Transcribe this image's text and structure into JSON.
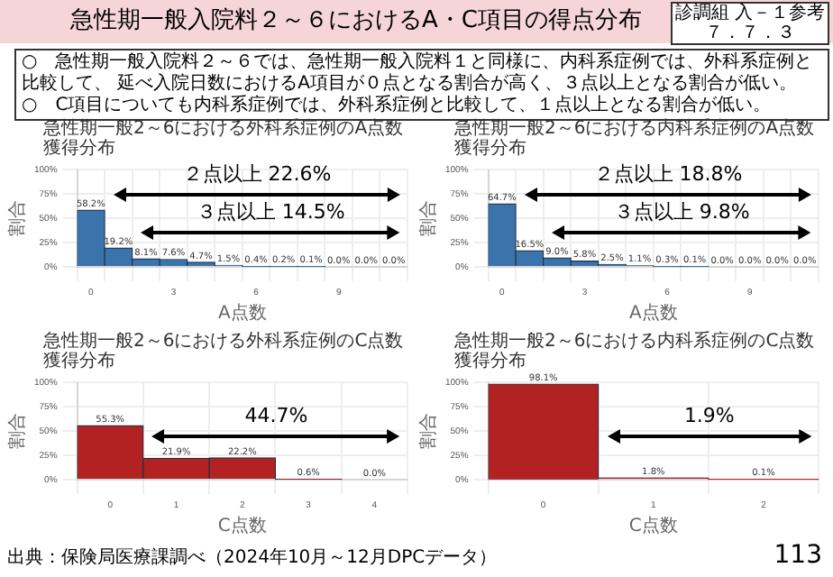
{
  "chart_data": [
    {
      "type": "other",
      "title": "急性期一般入院料２～６におけるA・C項目の得点分布",
      "annotations": [
        "診調組 入－１参考",
        "７．７．３",
        "○　急性期一般入院料２～６では、急性期一般入院料１と同様に、内科系症例では、外科系症例と比較して、 延べ入院日数におけるA項目が０点となる割合が高く、３点以上となる割合が低い。",
        "○　C項目についても内科系症例では、外科系症例と比較して、１点以上となる割合が低い。",
        "出典：保険局医療課調べ（2024年10月～12月DPCデータ）",
        "113"
      ]
    },
    {
      "type": "bar",
      "title": "急性期一般2～6における外科系症例のA点数獲得分布",
      "xlabel": "A点数",
      "ylabel": "割合",
      "categories": [
        "0",
        null,
        null,
        "3",
        null,
        null,
        "6",
        null,
        null,
        "9",
        null,
        null
      ],
      "values": [
        58.2,
        19.2,
        8.1,
        7.6,
        4.7,
        1.5,
        0.4,
        0.2,
        0.1,
        0.0,
        0.0,
        0.0
      ],
      "value_labels": [
        "58.2%",
        "19.2%",
        "8.1%",
        "7.6%",
        "4.7%",
        "1.5%",
        "0.4%",
        "0.2%",
        "0.1%",
        "0.0%",
        "0.0%",
        "0.0%"
      ],
      "color": "#3b74ad",
      "ylim": [
        0,
        100
      ],
      "yticks": [
        {
          "value": 0,
          "label": "0%"
        },
        {
          "value": 25,
          "label": "25%"
        },
        {
          "value": 50,
          "label": "50%"
        },
        {
          "value": 75,
          "label": "75%"
        },
        {
          "value": 100,
          "label": "100%"
        }
      ],
      "grid": true,
      "annotations": [
        "２点以上 22.6%",
        "３点以上 14.5%"
      ]
    },
    {
      "type": "bar",
      "title": "急性期一般2～6における内科系症例のA点数獲得分布",
      "xlabel": "A点数",
      "ylabel": "割合",
      "categories": [
        "0",
        null,
        null,
        "3",
        null,
        null,
        "6",
        null,
        null,
        "9",
        null,
        null
      ],
      "values": [
        64.7,
        16.5,
        9.0,
        5.8,
        2.5,
        1.1,
        0.3,
        0.1,
        0.0,
        0.0,
        0.0,
        0.0
      ],
      "value_labels": [
        "64.7%",
        "16.5%",
        "9.0%",
        "5.8%",
        "2.5%",
        "1.1%",
        "0.3%",
        "0.1%",
        "0.0%",
        "0.0%",
        "0.0%",
        "0.0%"
      ],
      "color": "#3b74ad",
      "ylim": [
        0,
        100
      ],
      "yticks": [
        {
          "value": 0,
          "label": "0%"
        },
        {
          "value": 25,
          "label": "25%"
        },
        {
          "value": 50,
          "label": "50%"
        },
        {
          "value": 75,
          "label": "75%"
        },
        {
          "value": 100,
          "label": "100%"
        }
      ],
      "grid": true,
      "annotations": [
        "２点以上 18.8%",
        "３点以上 9.8%"
      ]
    },
    {
      "type": "bar",
      "title": "急性期一般2～6における外科系症例のC点数獲得分布",
      "xlabel": "C点数",
      "ylabel": "割合",
      "categories": [
        "0",
        "1",
        "2",
        "3",
        "4"
      ],
      "values": [
        55.3,
        21.9,
        22.2,
        0.6,
        0.0
      ],
      "value_labels": [
        "55.3%",
        "21.9%",
        "22.2%",
        "0.6%",
        "0.0%"
      ],
      "color": "#b22222",
      "ylim": [
        0,
        100
      ],
      "yticks": [
        {
          "value": 0,
          "label": "0%"
        },
        {
          "value": 25,
          "label": "25%"
        },
        {
          "value": 50,
          "label": "50%"
        },
        {
          "value": 75,
          "label": "75%"
        },
        {
          "value": 100,
          "label": "100%"
        }
      ],
      "grid": true,
      "annotations": [
        "44.7%"
      ]
    },
    {
      "type": "bar",
      "title": "急性期一般2～6における内科系症例のC点数獲得分布",
      "xlabel": "C点数",
      "ylabel": "割合",
      "categories": [
        "0",
        "1",
        "2"
      ],
      "values": [
        98.1,
        1.8,
        0.1
      ],
      "value_labels": [
        "98.1%",
        "1.8%",
        "0.1%"
      ],
      "color": "#b22222",
      "ylim": [
        0,
        100
      ],
      "yticks": [
        {
          "value": 0,
          "label": "0%"
        },
        {
          "value": 25,
          "label": "25%"
        },
        {
          "value": 50,
          "label": "50%"
        },
        {
          "value": 75,
          "label": "75%"
        },
        {
          "value": 100,
          "label": "100%"
        }
      ],
      "grid": true,
      "annotations": [
        "1.9%"
      ]
    }
  ]
}
